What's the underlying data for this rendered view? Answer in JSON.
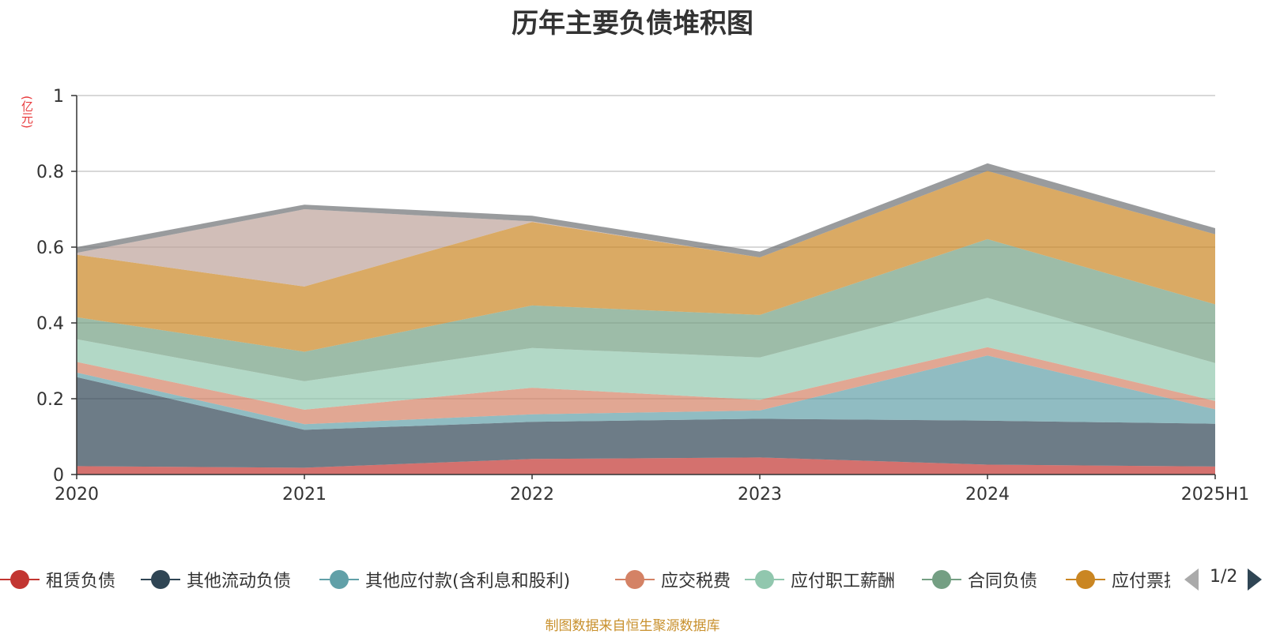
{
  "chart_data": {
    "type": "area",
    "stacked": true,
    "title": "历年主要负债堆积图",
    "unit_label": "(亿元)",
    "categories": [
      "2020",
      "2021",
      "2022",
      "2023",
      "2024",
      "2025H1"
    ],
    "y_ticks": [
      "0",
      "0.2",
      "0.4",
      "0.6",
      "0.8",
      "1"
    ],
    "ylim": [
      0,
      1
    ],
    "grid": true,
    "legend_position": "bottom",
    "series": [
      {
        "name": "租赁负债",
        "color": "#c23531",
        "values": [
          0.022,
          0.018,
          0.041,
          0.045,
          0.026,
          0.021
        ]
      },
      {
        "name": "其他流动负债",
        "color": "#2f4554",
        "values": [
          0.235,
          0.1,
          0.098,
          0.102,
          0.116,
          0.113
        ]
      },
      {
        "name": "其他应付款(含利息和股利)",
        "color": "#61a0a8",
        "values": [
          0.012,
          0.015,
          0.02,
          0.022,
          0.172,
          0.038
        ]
      },
      {
        "name": "应交税费",
        "color": "#d48265",
        "values": [
          0.028,
          0.038,
          0.07,
          0.028,
          0.022,
          0.022
        ]
      },
      {
        "name": "应付职工薪酬",
        "color": "#91c7ae",
        "values": [
          0.06,
          0.075,
          0.105,
          0.112,
          0.13,
          0.1
        ]
      },
      {
        "name": "合同负债",
        "color": "#749f83",
        "values": [
          0.058,
          0.078,
          0.112,
          0.112,
          0.155,
          0.155
        ]
      },
      {
        "name": "应付票据",
        "color": "#ca8622",
        "values": [
          0.165,
          0.172,
          0.22,
          0.152,
          0.18,
          0.185
        ]
      },
      {
        "name": "",
        "color": "#bda29a",
        "values": [
          0.005,
          0.204,
          0.002,
          0.0,
          0.0,
          0.0
        ]
      },
      {
        "name": "",
        "color": "#6e7074",
        "values": [
          0.015,
          0.012,
          0.015,
          0.015,
          0.02,
          0.016
        ]
      }
    ]
  },
  "legend": {
    "page_indicator": "1/2",
    "visible_count": 7
  },
  "source_note": "制图数据来自恒生聚源数据库"
}
